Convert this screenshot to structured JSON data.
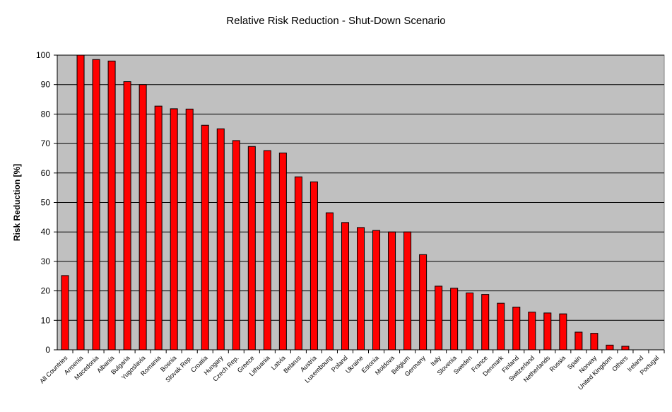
{
  "chart_data": {
    "type": "bar",
    "title": "Relative Risk Reduction - Shut-Down Scenario",
    "xlabel": "",
    "ylabel": "Risk Reduction [%]",
    "ylim": [
      0,
      100
    ],
    "yticks": [
      0,
      10,
      20,
      30,
      40,
      50,
      60,
      70,
      80,
      90,
      100
    ],
    "grid": true,
    "legend": "none",
    "bar_color": "#ff0000",
    "bar_edge_color": "#000000",
    "plot_background": "#c0c0c0",
    "categories": [
      "All Countries",
      "Armenia",
      "Macedonia",
      "Albania",
      "Bulgaria",
      "Yugoslavia",
      "Romania",
      "Bosnia",
      "Slovak Rep.",
      "Croatia",
      "Hungary",
      "Czech Rep.",
      "Greece",
      "Lithuania",
      "Latvia",
      "Belarus",
      "Austria",
      "Luxembourg",
      "Poland",
      "Ukraine",
      "Estonia",
      "Moldova",
      "Belgium",
      "Germany",
      "Italy",
      "Slovenia",
      "Sweden",
      "France",
      "Denmark",
      "Finland",
      "Switzerland",
      "Netherlands",
      "Russia",
      "Spain",
      "Norway",
      "United Kingdom",
      "Others",
      "Ireland",
      "Portugal"
    ],
    "values": [
      25.2,
      100,
      98.5,
      98,
      91,
      90,
      82.7,
      81.8,
      81.7,
      76.2,
      75,
      71,
      69,
      67.6,
      66.8,
      58.7,
      57,
      46.5,
      43.2,
      41.5,
      40.5,
      40,
      40,
      32.3,
      21.6,
      20.9,
      19.3,
      18.8,
      15.8,
      14.5,
      12.8,
      12.5,
      12.2,
      6,
      5.6,
      1.6,
      1.2,
      0,
      0
    ]
  }
}
